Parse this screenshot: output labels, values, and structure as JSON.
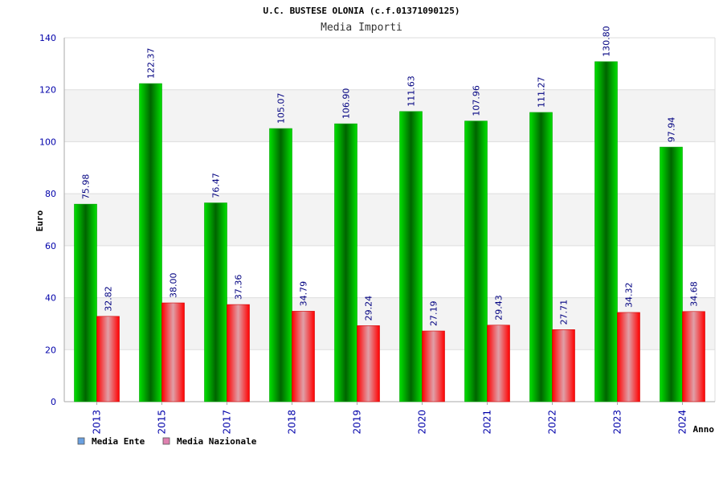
{
  "chart_data": {
    "type": "bar",
    "title": "U.C. BUSTESE OLONIA (c.f.01371090125)",
    "subtitle": "Media Importi",
    "xlabel": "Anno",
    "ylabel": "Euro",
    "ylim": [
      0,
      140
    ],
    "yticks": [
      "0",
      "20",
      "40",
      "60",
      "80",
      "100",
      "120",
      "140"
    ],
    "categories": [
      "2013",
      "2015",
      "2017",
      "2018",
      "2019",
      "2020",
      "2021",
      "2022",
      "2023",
      "2024"
    ],
    "series": [
      {
        "name": "Media Ente",
        "values": [
          75.98,
          122.37,
          76.47,
          105.07,
          106.9,
          111.63,
          107.96,
          111.27,
          130.8,
          97.94
        ],
        "labels": [
          "75.98",
          "122.37",
          "76.47",
          "105.07",
          "106.90",
          "111.63",
          "107.96",
          "111.27",
          "130.80",
          "97.94"
        ],
        "color": "#00c800",
        "legend_color": "#6aa0e0"
      },
      {
        "name": "Media Nazionale",
        "values": [
          32.82,
          38.0,
          37.36,
          34.79,
          29.24,
          27.19,
          29.43,
          27.71,
          34.32,
          34.68
        ],
        "labels": [
          "32.82",
          "38.00",
          "37.36",
          "34.79",
          "29.24",
          "27.19",
          "29.43",
          "27.71",
          "34.32",
          "34.68"
        ],
        "color": "#ff0000",
        "legend_color": "#e080b0"
      }
    ],
    "grid": true,
    "legend_position": "bottom-left",
    "colors": {
      "axis_text": "#0000aa",
      "label_text": "#000080"
    }
  }
}
